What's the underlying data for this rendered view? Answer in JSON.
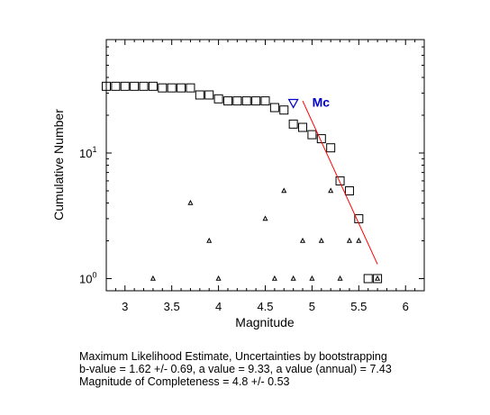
{
  "chart_data": {
    "type": "scatter",
    "xlabel": "Magnitude",
    "ylabel": "Cumulative Number",
    "xlim": [
      2.8,
      6.2
    ],
    "ylim": [
      0.8,
      80
    ],
    "yscale": "log",
    "grid": false,
    "x_ticks": [
      3,
      3.5,
      4,
      4.5,
      5,
      5.5,
      6
    ],
    "x_tick_labels": [
      "3",
      "3.5",
      "4",
      "4.5",
      "5",
      "5.5",
      "6"
    ],
    "y_ticks": [
      1,
      10
    ],
    "y_tick_labels": [
      {
        "base": "10",
        "exp": "0"
      },
      {
        "base": "10",
        "exp": "1"
      }
    ],
    "series": [
      {
        "marker": "square",
        "x": [
          2.8,
          2.9,
          3.0,
          3.1,
          3.2,
          3.3,
          3.4,
          3.5,
          3.6,
          3.7,
          3.8,
          3.9,
          4.0,
          4.1,
          4.2,
          4.3,
          4.4,
          4.5,
          4.6,
          4.7,
          4.8,
          4.9,
          5.0,
          5.1,
          5.2,
          5.3,
          5.4,
          5.5,
          5.6,
          5.7
        ],
        "y": [
          34,
          34,
          34,
          34,
          34,
          34,
          33,
          33,
          33,
          33,
          29,
          29,
          27,
          26,
          26,
          26,
          26,
          26,
          23,
          22,
          17,
          16,
          14,
          13,
          11,
          6,
          5,
          3,
          1,
          1
        ]
      },
      {
        "marker": "triangle",
        "x": [
          3.3,
          3.7,
          3.9,
          4.0,
          4.5,
          4.6,
          4.7,
          4.8,
          4.9,
          5.0,
          5.1,
          5.2,
          5.3,
          5.4,
          5.5,
          5.7
        ],
        "y": [
          1,
          4,
          2,
          1,
          3,
          1,
          5,
          1,
          2,
          1,
          2,
          5,
          1,
          2,
          2,
          1
        ]
      }
    ],
    "fit_line": {
      "color": "#ff0000",
      "x": [
        4.9,
        5.7
      ],
      "y": [
        26,
        1.3
      ]
    },
    "mc_marker": {
      "label": "Mc",
      "x": 4.8,
      "y": 25,
      "color": "#0000cc"
    }
  },
  "stats": {
    "line1": "Maximum Likelihood Estimate, Uncertainties by bootstrapping",
    "line2": "b-value = 1.62 +/- 0.69,  a value = 9.33,  a value (annual) = 7.43",
    "line3": "Magnitude of Completeness = 4.8 +/- 0.53"
  }
}
